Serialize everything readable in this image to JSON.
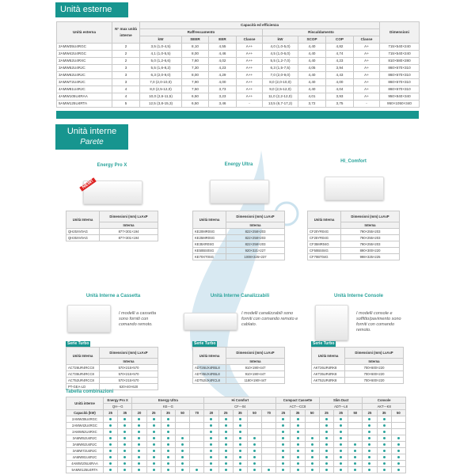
{
  "accent": "#17958f",
  "outdoor": {
    "title": "Unità esterne",
    "headers": {
      "unit": "Unità esterna",
      "max": "N° max unità interne",
      "cap": "Capacità ed efficienza",
      "cool": "Raffrescamento",
      "heat": "Riscaldamento",
      "dim": "Dimensioni",
      "kw": "kW",
      "seer": "SEER",
      "eer": "EER",
      "classe": "Classe",
      "scop": "SCOP",
      "cop": "COP"
    },
    "rows": [
      [
        "2AMW35U4RGC",
        "2",
        "3,5 (1,0-4,5)",
        "8,10",
        "4,55",
        "A++",
        "4,0 (1,0-5,0)",
        "4,40",
        "4,82",
        "A+",
        "715×540×240"
      ],
      [
        "2AMW42U4RGC",
        "2",
        "4,1 (1,0-5,5)",
        "8,00",
        "4,46",
        "A++",
        "4,5 (1,0-6,0)",
        "4,40",
        "4,74",
        "A+",
        "715×540×240"
      ],
      [
        "2AMW52U4RXC",
        "2",
        "5,0 (1,2-6,6)",
        "7,60",
        "4,02",
        "A++",
        "5,5 (1,2-7,0)",
        "4,40",
        "4,23",
        "A+",
        "810×580×280"
      ],
      [
        "3AMW52U4RJC",
        "3",
        "5,5 (1,6-8,2)",
        "7,30",
        "4,23",
        "A++",
        "6,3 (1,5-7,5)",
        "4,05",
        "3,94",
        "A+",
        "860×670×310"
      ],
      [
        "3AMW62U4RJC",
        "3",
        "6,3 (2,0-9,0)",
        "8,00",
        "4,29",
        "A++",
        "7,0 (2,0-9,0)",
        "4,40",
        "4,43",
        "A+",
        "860×670×310"
      ],
      [
        "3AMW72U4RJC",
        "3",
        "7,0 (2,0-10,0)",
        "7,90",
        "4,00",
        "A++",
        "8,0 (2,0-10,0)",
        "4,40",
        "4,00",
        "A+",
        "860×670×310"
      ],
      [
        "4AMW81U4RJC",
        "4",
        "8,0 (2,5-12,0)",
        "7,50",
        "3,73",
        "A++",
        "9,0 (2,5-12,0)",
        "4,40",
        "4,04",
        "A+",
        "860×670×310"
      ],
      [
        "4AMW105U4RAA",
        "4",
        "10,0 (2,6-11,5)",
        "6,50",
        "3,23",
        "A++",
        "11,0 (2,2-12,0)",
        "4,01",
        "3,93",
        "A+",
        "950×840×340"
      ],
      [
        "5AMW125U4RTA",
        "5",
        "12,5 (3,8-15,3)",
        "6,50",
        "3,46",
        "-",
        "13,5 (6,7-17,2)",
        "3,72",
        "3,75",
        "-",
        "950×1050×340"
      ]
    ]
  },
  "indoor": {
    "title": "Unità interne",
    "subtitle": "Parete",
    "th_unit": "Unità Interna",
    "th_dim": "Dimensioni (mm) LxAxP",
    "th_int": "Interna",
    "serie": "Serie Turbo",
    "new_badge": "NEW!",
    "wall": [
      {
        "name": "Energy Pro X",
        "rows": [
          [
            "QH25XV0AG",
            "877×301×194"
          ],
          [
            "QH35XV0AG",
            "877×301×194"
          ]
        ]
      },
      {
        "name": "Energy Ultra",
        "rows": [
          [
            "KE20MR0SG",
            "822×258×203"
          ],
          [
            "KE25MR0SG",
            "822×258×203"
          ],
          [
            "KE35XR0SG",
            "822×258×203"
          ],
          [
            "KE50BS0SG",
            "920×321×227"
          ],
          [
            "KE70XT0SG",
            "1008×325×237"
          ]
        ]
      },
      {
        "name": "HI_Comfort",
        "rows": [
          [
            "CF20YR04G",
            "790×255×203"
          ],
          [
            "CF25YR04G",
            "790×255×203"
          ],
          [
            "CF35MR04G",
            "790×255×203"
          ],
          [
            "CF50BS04G",
            "890×300×220"
          ],
          [
            "CF70BT04G",
            "998×325×225"
          ]
        ]
      }
    ],
    "other": [
      {
        "name": "Unità Interne a Cassetta",
        "desc": "I modelli a cassetta sono forniti con comando remoto.",
        "rows": [
          [
            "ACT26UR4RCC8",
            "570×215×570"
          ],
          [
            "ACT35UR4RCC8",
            "570×215×570"
          ],
          [
            "ACT52UR4RCC8",
            "570×215×570"
          ],
          [
            "PT-GEA-LD",
            "620×40×620"
          ]
        ]
      },
      {
        "name": "Unità Interne Canalizzabili",
        "desc": "I modelli canalizzabili sono forniti con comando remoto e cablato.",
        "rows": [
          [
            "ADT26UX4RBL8",
            "910×190×447"
          ],
          [
            "ADT35UX4RBL8",
            "910×190×447"
          ],
          [
            "ADT52UX4RCL8",
            "1180×190×447"
          ]
        ]
      },
      {
        "name": "Unità Interne Console",
        "desc": "I modelli console e soffitto/pavimento sono forniti con comando remoto.",
        "rows": [
          [
            "AKT26UR4RK8",
            "700×600×220"
          ],
          [
            "AKT35UR4RK8",
            "700×600×220"
          ],
          [
            "AKT52UR4RK8",
            "700×600×220"
          ]
        ]
      }
    ]
  },
  "combo": {
    "title": "Tabella combinazioni",
    "th_unit": "Unità interne",
    "th_cap": "Capacità (kW)",
    "groups": [
      {
        "name": "Energy Pro X",
        "code": "QH---G",
        "caps": [
          "25",
          "35"
        ]
      },
      {
        "name": "Energy Ultra",
        "code": "KE---G",
        "caps": [
          "20",
          "25",
          "35",
          "50",
          "70"
        ]
      },
      {
        "name": "Hi Comfort",
        "code": "CF---04",
        "caps": [
          "20",
          "25",
          "35",
          "50",
          "70"
        ]
      },
      {
        "name": "Compact Cassette",
        "code": "ACT---CC8",
        "caps": [
          "25",
          "35",
          "50"
        ]
      },
      {
        "name": "Slim Duct",
        "code": "ADT---L8",
        "caps": [
          "25",
          "35",
          "50"
        ]
      },
      {
        "name": "Console",
        "code": "AKT---K8",
        "caps": [
          "25",
          "35",
          "50"
        ]
      }
    ],
    "rows": [
      {
        "unit": "2AMW35U4RGC",
        "m": "111110011100110110110"
      },
      {
        "unit": "2AMW42U4RGC",
        "m": "111110011100110110110"
      },
      {
        "unit": "2AMW52U4RXC",
        "m": "111110011100110110110"
      },
      {
        "unit": "3AMW52U4RJC",
        "m": "111111011110111110111"
      },
      {
        "unit": "3AMW62U4RJC",
        "m": "111111011110111111111"
      },
      {
        "unit": "3AMW72U4RJC",
        "m": "111111011110111111111"
      },
      {
        "unit": "4AMW81U4RJC",
        "m": "111111011110111111111"
      },
      {
        "unit": "4AMW105U4RAA",
        "m": "111111011110111111111"
      },
      {
        "unit": "5AMW125U4RTA",
        "m": "111111111111111111111"
      }
    ]
  }
}
